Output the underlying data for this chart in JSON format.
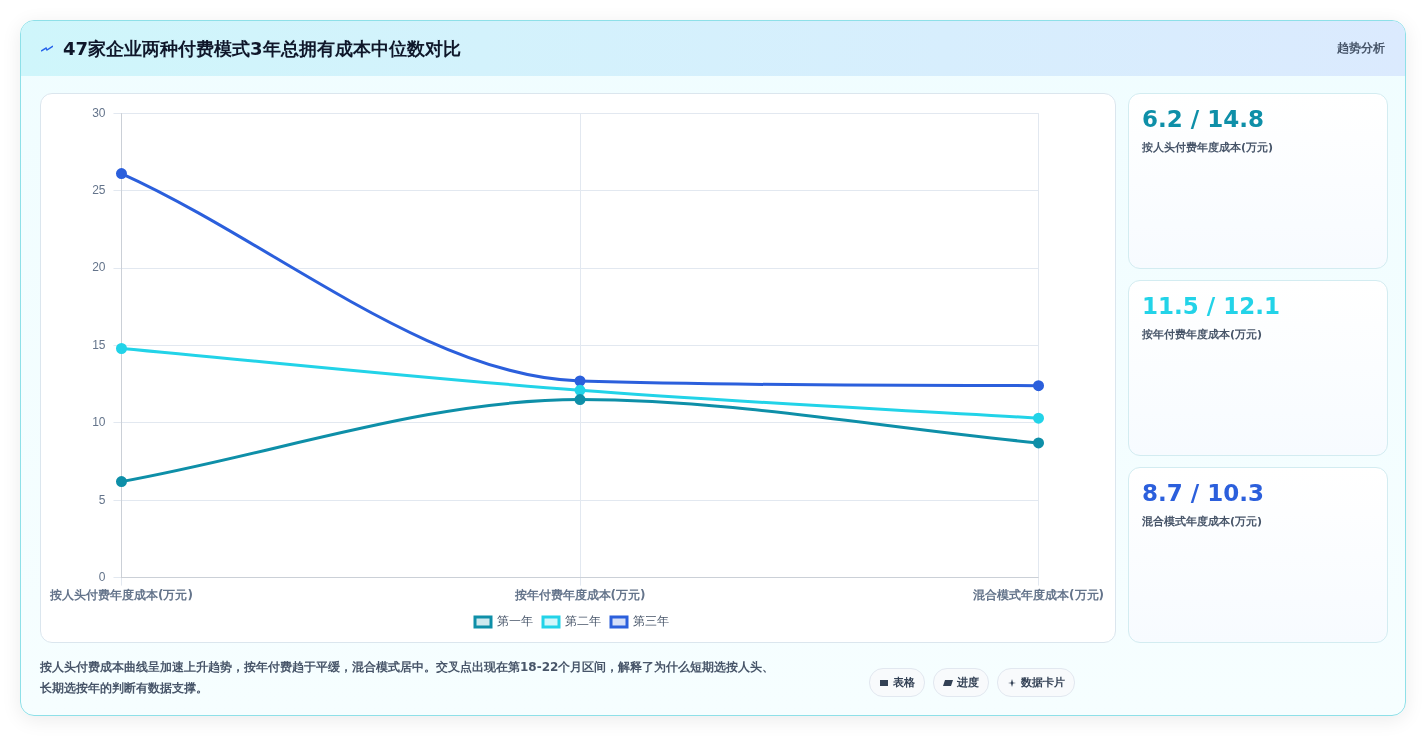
{
  "chart_data": [
    {
      "type": "line",
      "title": "47家企业两种付费模式3年总拥有成本中位数对比",
      "categories": [
        "按人头付费年度成本(万元)",
        "按年付费年度成本(万元)",
        "混合模式年度成本(万元)"
      ],
      "series": [
        {
          "name": "第一年",
          "color": "#0e8fa8",
          "values": [
            6.2,
            11.5,
            8.7
          ]
        },
        {
          "name": "第二年",
          "color": "#22d3e8",
          "values": [
            14.8,
            12.1,
            10.3
          ]
        },
        {
          "name": "第三年",
          "color": "#2b5fdc",
          "values": [
            26.1,
            12.7,
            12.4
          ]
        }
      ],
      "ylim": [
        0,
        30
      ],
      "yticks": [
        0,
        5,
        10,
        15,
        20,
        25,
        30
      ],
      "grid": true,
      "legend": "bottom",
      "marker": "circle",
      "line_style": "solid",
      "annotations": [
        "按人头付费成本曲线呈加速上升趋势，按年付费趋于平缓，混合模式居中。交叉点出现在第18-22个月区间，解释了为什么短期选按人头、长期选按年的判断有数据支撑。"
      ]
    },
    {
      "type": "other",
      "colors": [
        "#0e8fa8",
        "#22d3e8",
        "#2b5fdc"
      ],
      "annotations": [
        "趋势分析",
        "6.2 / 14.8",
        "按人头付费年度成本(万元)",
        "11.5 / 12.1",
        "按年付费年度成本(万元)",
        "8.7 / 10.3",
        "混合模式年度成本(万元)",
        "表格",
        "进度",
        "数据卡片"
      ]
    }
  ]
}
